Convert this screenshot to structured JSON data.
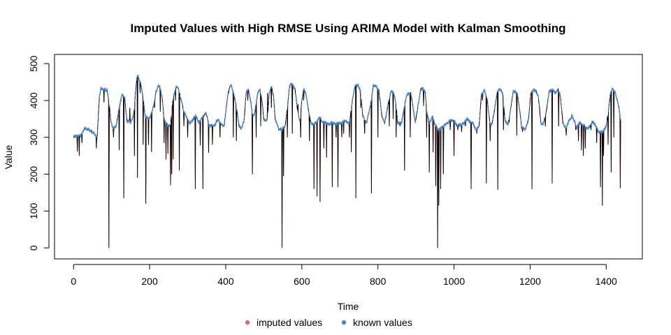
{
  "chart_data": {
    "type": "line",
    "title": "Imputed Values with High RMSE Using ARIMA Model with Kalman Smoothing",
    "xlabel": "Time",
    "ylabel": "Value",
    "xlim": [
      -50,
      1495
    ],
    "ylim": [
      -30,
      525
    ],
    "x_ticks": [
      0,
      200,
      400,
      600,
      800,
      1000,
      1200,
      1400
    ],
    "y_ticks": [
      0,
      100,
      200,
      300,
      400,
      500
    ],
    "grid": false,
    "legend_position": "bottom-center",
    "colors": {
      "imputed": "#e8666a",
      "known": "#4b86c5",
      "line": "#000000"
    },
    "series": [
      {
        "name": "imputed values",
        "color": "#e8666a",
        "spikes": [
          [
            10,
            262
          ],
          [
            15,
            250
          ],
          [
            22,
            285
          ],
          [
            60,
            270
          ],
          [
            80,
            395
          ],
          [
            93,
            0
          ],
          [
            105,
            300
          ],
          [
            120,
            265
          ],
          [
            132,
            135
          ],
          [
            148,
            380
          ],
          [
            160,
            250
          ],
          [
            168,
            190
          ],
          [
            175,
            420
          ],
          [
            183,
            280
          ],
          [
            190,
            120
          ],
          [
            197,
            280
          ],
          [
            205,
            260
          ],
          [
            213,
            380
          ],
          [
            228,
            370
          ],
          [
            238,
            285
          ],
          [
            243,
            240
          ],
          [
            248,
            255
          ],
          [
            255,
            170
          ],
          [
            258,
            200
          ],
          [
            262,
            240
          ],
          [
            268,
            400
          ],
          [
            278,
            210
          ],
          [
            290,
            330
          ],
          [
            300,
            300
          ],
          [
            320,
            160
          ],
          [
            333,
            278
          ],
          [
            340,
            160
          ],
          [
            355,
            258
          ],
          [
            365,
            280
          ],
          [
            385,
            300
          ],
          [
            408,
            420
          ],
          [
            420,
            300
          ],
          [
            428,
            290
          ],
          [
            435,
            330
          ],
          [
            458,
            400
          ],
          [
            470,
            200
          ],
          [
            480,
            300
          ],
          [
            492,
            330
          ],
          [
            500,
            350
          ],
          [
            510,
            420
          ],
          [
            520,
            380
          ],
          [
            548,
            0
          ],
          [
            552,
            195
          ],
          [
            562,
            300
          ],
          [
            575,
            310
          ],
          [
            590,
            390
          ],
          [
            597,
            300
          ],
          [
            605,
            400
          ],
          [
            620,
            290
          ],
          [
            632,
            160
          ],
          [
            640,
            140
          ],
          [
            648,
            125
          ],
          [
            658,
            270
          ],
          [
            665,
            245
          ],
          [
            680,
            165
          ],
          [
            690,
            300
          ],
          [
            695,
            165
          ],
          [
            705,
            300
          ],
          [
            710,
            310
          ],
          [
            725,
            300
          ],
          [
            730,
            260
          ],
          [
            742,
            135
          ],
          [
            755,
            380
          ],
          [
            765,
            310
          ],
          [
            783,
            148
          ],
          [
            800,
            300
          ],
          [
            810,
            360
          ],
          [
            830,
            330
          ],
          [
            840,
            350
          ],
          [
            848,
            300
          ],
          [
            858,
            330
          ],
          [
            870,
            210
          ],
          [
            885,
            300
          ],
          [
            900,
            350
          ],
          [
            920,
            385
          ],
          [
            928,
            300
          ],
          [
            935,
            205
          ],
          [
            945,
            260
          ],
          [
            952,
            168
          ],
          [
            957,
            0
          ],
          [
            960,
            115
          ],
          [
            965,
            160
          ],
          [
            972,
            200
          ],
          [
            990,
            320
          ],
          [
            1000,
            250
          ],
          [
            1010,
            320
          ],
          [
            1020,
            315
          ],
          [
            1030,
            330
          ],
          [
            1045,
            160
          ],
          [
            1060,
            310
          ],
          [
            1075,
            400
          ],
          [
            1085,
            175
          ],
          [
            1095,
            290
          ],
          [
            1115,
            158
          ],
          [
            1130,
            320
          ],
          [
            1145,
            340
          ],
          [
            1165,
            305
          ],
          [
            1180,
            315
          ],
          [
            1190,
            330
          ],
          [
            1205,
            160
          ],
          [
            1225,
            380
          ],
          [
            1240,
            330
          ],
          [
            1258,
            175
          ],
          [
            1275,
            330
          ],
          [
            1295,
            305
          ],
          [
            1320,
            320
          ],
          [
            1327,
            290
          ],
          [
            1335,
            265
          ],
          [
            1340,
            250
          ],
          [
            1345,
            270
          ],
          [
            1360,
            320
          ],
          [
            1375,
            285
          ],
          [
            1385,
            165
          ],
          [
            1390,
            115
          ],
          [
            1393,
            250
          ],
          [
            1405,
            280
          ],
          [
            1413,
            205
          ],
          [
            1420,
            300
          ],
          [
            1437,
            162
          ]
        ]
      },
      {
        "name": "known values",
        "color": "#4b86c5",
        "keypoints": [
          [
            0,
            302
          ],
          [
            20,
            305
          ],
          [
            30,
            325
          ],
          [
            45,
            318
          ],
          [
            55,
            310
          ],
          [
            62,
            300
          ],
          [
            68,
            410
          ],
          [
            72,
            432
          ],
          [
            88,
            428
          ],
          [
            93,
            400
          ],
          [
            98,
            340
          ],
          [
            105,
            325
          ],
          [
            112,
            330
          ],
          [
            120,
            380
          ],
          [
            128,
            418
          ],
          [
            135,
            405
          ],
          [
            140,
            345
          ],
          [
            150,
            340
          ],
          [
            158,
            360
          ],
          [
            164,
            440
          ],
          [
            168,
            468
          ],
          [
            176,
            448
          ],
          [
            183,
            408
          ],
          [
            188,
            358
          ],
          [
            200,
            350
          ],
          [
            208,
            375
          ],
          [
            216,
            420
          ],
          [
            222,
            440
          ],
          [
            228,
            435
          ],
          [
            233,
            405
          ],
          [
            238,
            350
          ],
          [
            246,
            334
          ],
          [
            255,
            334
          ],
          [
            262,
            410
          ],
          [
            270,
            437
          ],
          [
            276,
            430
          ],
          [
            283,
            400
          ],
          [
            290,
            370
          ],
          [
            298,
            352
          ],
          [
            306,
            338
          ],
          [
            312,
            345
          ],
          [
            320,
            360
          ],
          [
            330,
            340
          ],
          [
            340,
            355
          ],
          [
            348,
            368
          ],
          [
            352,
            350
          ],
          [
            356,
            332
          ],
          [
            370,
            330
          ],
          [
            378,
            348
          ],
          [
            390,
            335
          ],
          [
            396,
            332
          ],
          [
            402,
            385
          ],
          [
            408,
            432
          ],
          [
            414,
            442
          ],
          [
            420,
            425
          ],
          [
            428,
            385
          ],
          [
            435,
            330
          ],
          [
            442,
            325
          ],
          [
            448,
            345
          ],
          [
            454,
            422
          ],
          [
            460,
            428
          ],
          [
            466,
            395
          ],
          [
            470,
            360
          ],
          [
            476,
            365
          ],
          [
            484,
            420
          ],
          [
            490,
            430
          ],
          [
            496,
            395
          ],
          [
            500,
            345
          ],
          [
            510,
            350
          ],
          [
            514,
            420
          ],
          [
            520,
            440
          ],
          [
            526,
            410
          ],
          [
            530,
            350
          ],
          [
            540,
            320
          ],
          [
            548,
            322
          ],
          [
            556,
            330
          ],
          [
            562,
            380
          ],
          [
            568,
            440
          ],
          [
            575,
            445
          ],
          [
            582,
            430
          ],
          [
            588,
            380
          ],
          [
            595,
            340
          ],
          [
            600,
            400
          ],
          [
            605,
            435
          ],
          [
            612,
            410
          ],
          [
            618,
            370
          ],
          [
            624,
            340
          ],
          [
            632,
            333
          ],
          [
            640,
            345
          ],
          [
            648,
            355
          ],
          [
            654,
            340
          ],
          [
            662,
            340
          ],
          [
            670,
            335
          ],
          [
            680,
            340
          ],
          [
            690,
            336
          ],
          [
            700,
            338
          ],
          [
            710,
            345
          ],
          [
            718,
            342
          ],
          [
            725,
            338
          ],
          [
            733,
            400
          ],
          [
            740,
            440
          ],
          [
            748,
            442
          ],
          [
            754,
            425
          ],
          [
            760,
            360
          ],
          [
            770,
            340
          ],
          [
            780,
            385
          ],
          [
            788,
            440
          ],
          [
            796,
            440
          ],
          [
            803,
            425
          ],
          [
            810,
            360
          ],
          [
            818,
            340
          ],
          [
            826,
            385
          ],
          [
            834,
            425
          ],
          [
            842,
            420
          ],
          [
            848,
            385
          ],
          [
            852,
            340
          ],
          [
            862,
            340
          ],
          [
            870,
            385
          ],
          [
            876,
            418
          ],
          [
            886,
            420
          ],
          [
            892,
            385
          ],
          [
            898,
            340
          ],
          [
            906,
            390
          ],
          [
            912,
            430
          ],
          [
            918,
            432
          ],
          [
            924,
            425
          ],
          [
            930,
            360
          ],
          [
            936,
            340
          ],
          [
            944,
            355
          ],
          [
            950,
            335
          ],
          [
            960,
            320
          ],
          [
            975,
            333
          ],
          [
            990,
            345
          ],
          [
            1000,
            345
          ],
          [
            1008,
            332
          ],
          [
            1018,
            335
          ],
          [
            1026,
            338
          ],
          [
            1034,
            350
          ],
          [
            1042,
            342
          ],
          [
            1050,
            338
          ],
          [
            1058,
            320
          ],
          [
            1066,
            330
          ],
          [
            1072,
            415
          ],
          [
            1080,
            428
          ],
          [
            1088,
            400
          ],
          [
            1094,
            340
          ],
          [
            1100,
            335
          ],
          [
            1106,
            372
          ],
          [
            1114,
            425
          ],
          [
            1120,
            430
          ],
          [
            1128,
            420
          ],
          [
            1134,
            345
          ],
          [
            1142,
            335
          ],
          [
            1148,
            372
          ],
          [
            1156,
            426
          ],
          [
            1166,
            420
          ],
          [
            1172,
            380
          ],
          [
            1178,
            325
          ],
          [
            1188,
            322
          ],
          [
            1196,
            350
          ],
          [
            1202,
            420
          ],
          [
            1210,
            428
          ],
          [
            1216,
            425
          ],
          [
            1222,
            410
          ],
          [
            1228,
            340
          ],
          [
            1234,
            335
          ],
          [
            1242,
            365
          ],
          [
            1250,
            425
          ],
          [
            1260,
            428
          ],
          [
            1266,
            420
          ],
          [
            1274,
            430
          ],
          [
            1280,
            410
          ],
          [
            1286,
            340
          ],
          [
            1294,
            325
          ],
          [
            1300,
            340
          ],
          [
            1310,
            358
          ],
          [
            1318,
            340
          ],
          [
            1322,
            325
          ],
          [
            1330,
            340
          ],
          [
            1338,
            335
          ],
          [
            1348,
            325
          ],
          [
            1356,
            328
          ],
          [
            1364,
            342
          ],
          [
            1370,
            335
          ],
          [
            1378,
            318
          ],
          [
            1386,
            312
          ],
          [
            1394,
            318
          ],
          [
            1400,
            330
          ],
          [
            1406,
            375
          ],
          [
            1412,
            425
          ],
          [
            1418,
            434
          ],
          [
            1424,
            420
          ],
          [
            1432,
            390
          ],
          [
            1438,
            350
          ]
        ]
      }
    ]
  }
}
